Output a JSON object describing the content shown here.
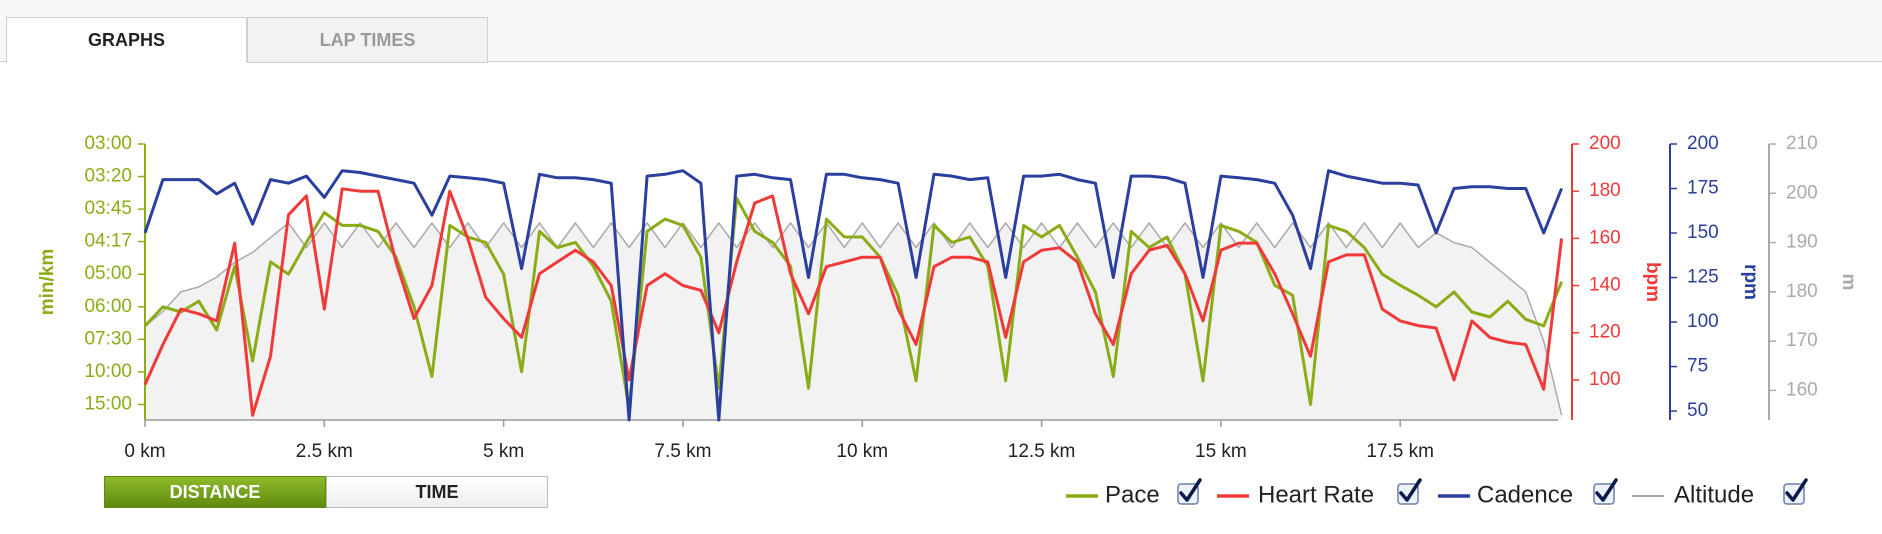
{
  "tabs": [
    "GRAPHS",
    "LAP TIMES"
  ],
  "active_tab": 0,
  "buttons": [
    "DISTANCE",
    "TIME"
  ],
  "active_button": 0,
  "chart_data": {
    "type": "line",
    "x": [
      0,
      0.25,
      0.5,
      0.75,
      1,
      1.25,
      1.5,
      1.75,
      2,
      2.25,
      2.5,
      2.75,
      3,
      3.25,
      3.5,
      3.75,
      4,
      4.25,
      4.5,
      4.75,
      5,
      5.25,
      5.5,
      5.75,
      6,
      6.25,
      6.5,
      6.75,
      7,
      7.25,
      7.5,
      7.75,
      8,
      8.25,
      8.5,
      8.75,
      9,
      9.25,
      9.5,
      9.75,
      10,
      10.25,
      10.5,
      10.75,
      11,
      11.25,
      11.5,
      11.75,
      12,
      12.25,
      12.5,
      12.75,
      13,
      13.25,
      13.5,
      13.75,
      14,
      14.25,
      14.5,
      14.75,
      15,
      15.25,
      15.5,
      15.75,
      16,
      16.25,
      16.5,
      16.75,
      17,
      17.25,
      17.5,
      17.75,
      18,
      18.25,
      18.5,
      18.75,
      19,
      19.25,
      19.5,
      19.75
    ],
    "xlim": [
      0,
      19.7
    ],
    "xticks": [
      {
        "value": 0,
        "label": "0 km"
      },
      {
        "value": 2.5,
        "label": "2.5 km"
      },
      {
        "value": 5,
        "label": "5 km"
      },
      {
        "value": 7.5,
        "label": "7.5 km"
      },
      {
        "value": 10,
        "label": "10 km"
      },
      {
        "value": 12.5,
        "label": "12.5 km"
      },
      {
        "value": 15,
        "label": "15 km"
      },
      {
        "value": 17.5,
        "label": "17.5 km"
      }
    ],
    "ylabel": "min/km",
    "yscale": "reciprocal",
    "ylim": [
      3,
      19.7
    ],
    "yticks": [
      {
        "value": 3,
        "label": "03:00"
      },
      {
        "value": 3.333,
        "label": "03:20"
      },
      {
        "value": 3.75,
        "label": "03:45"
      },
      {
        "value": 4.283,
        "label": "04:17"
      },
      {
        "value": 5,
        "label": "05:00"
      },
      {
        "value": 6,
        "label": "06:00"
      },
      {
        "value": 7.5,
        "label": "07:30"
      },
      {
        "value": 10,
        "label": "10:00"
      },
      {
        "value": 15,
        "label": "15:00"
      }
    ],
    "y2label": "bpm",
    "y2lim": [
      83,
      200
    ],
    "y2ticks": [
      100,
      120,
      140,
      160,
      180,
      200
    ],
    "y3label": "rpm",
    "y3lim": [
      45,
      200
    ],
    "y3ticks": [
      50,
      75,
      100,
      125,
      150,
      175,
      200
    ],
    "y4label": "m",
    "y4lim": [
      154,
      210
    ],
    "y4ticks": [
      160,
      170,
      180,
      190,
      200,
      210
    ],
    "series": [
      {
        "name": "Pace",
        "color": "#8aad17",
        "axis": "y",
        "checked": true,
        "values": [
          6.8,
          6.0,
          6.2,
          5.8,
          7.0,
          4.8,
          9.0,
          4.7,
          5.0,
          4.3,
          3.8,
          4.0,
          4.0,
          4.1,
          4.6,
          6.0,
          10.5,
          4.0,
          4.2,
          4.3,
          5.0,
          10.0,
          4.1,
          4.4,
          4.3,
          4.8,
          5.8,
          16,
          4.1,
          3.9,
          4.0,
          4.6,
          12,
          3.6,
          4.1,
          4.3,
          4.8,
          12,
          3.9,
          4.2,
          4.2,
          4.6,
          5.6,
          11,
          4.0,
          4.3,
          4.2,
          4.8,
          11,
          4.0,
          4.2,
          4.0,
          4.6,
          5.5,
          10.5,
          4.1,
          4.4,
          4.2,
          5.0,
          11,
          4.0,
          4.1,
          4.3,
          5.3,
          5.6,
          15,
          4.0,
          4.1,
          4.4,
          5.0,
          5.3,
          5.6,
          6.0,
          5.5,
          6.2,
          6.4,
          5.8,
          6.5,
          6.8,
          5.2
        ]
      },
      {
        "name": "Heart Rate",
        "color": "#f03a3a",
        "axis": "y2",
        "checked": true,
        "values": [
          98,
          115,
          130,
          128,
          125,
          158,
          85,
          110,
          170,
          178,
          130,
          181,
          180,
          180,
          150,
          126,
          140,
          180,
          160,
          135,
          126,
          118,
          145,
          150,
          155,
          150,
          140,
          100,
          140,
          145,
          140,
          138,
          120,
          150,
          175,
          178,
          145,
          128,
          148,
          150,
          152,
          152,
          130,
          115,
          148,
          152,
          152,
          150,
          118,
          150,
          155,
          156,
          150,
          128,
          115,
          145,
          155,
          157,
          145,
          125,
          155,
          158,
          158,
          145,
          128,
          110,
          150,
          153,
          153,
          130,
          125,
          123,
          122,
          100,
          125,
          118,
          116,
          115,
          96,
          160
        ]
      },
      {
        "name": "Cadence",
        "color": "#2b3f9e",
        "axis": "y3",
        "checked": true,
        "values": [
          150,
          180,
          180,
          180,
          172,
          178,
          155,
          180,
          178,
          182,
          170,
          185,
          184,
          182,
          180,
          178,
          160,
          182,
          181,
          180,
          178,
          130,
          183,
          181,
          181,
          180,
          178,
          45,
          182,
          183,
          185,
          178,
          45,
          182,
          183,
          181,
          180,
          125,
          183,
          183,
          181,
          180,
          178,
          125,
          183,
          182,
          180,
          181,
          125,
          182,
          182,
          183,
          180,
          178,
          125,
          182,
          182,
          181,
          178,
          125,
          182,
          181,
          180,
          178,
          160,
          130,
          185,
          182,
          180,
          178,
          178,
          177,
          150,
          175,
          176,
          176,
          175,
          175,
          150,
          175
        ]
      },
      {
        "name": "Altitude",
        "color": "#aaaaaa",
        "fill": "#f2f2f2",
        "axis": "y4",
        "checked": true,
        "values": [
          173,
          176,
          180,
          181,
          183,
          186,
          188,
          191,
          194,
          189,
          194,
          189,
          194,
          189,
          194,
          189,
          194,
          189,
          194,
          189,
          194,
          189,
          194,
          189,
          194,
          189,
          194,
          189,
          194,
          189,
          194,
          189,
          194,
          189,
          194,
          189,
          194,
          189,
          194,
          189,
          194,
          189,
          194,
          189,
          194,
          189,
          194,
          189,
          194,
          189,
          194,
          189,
          194,
          189,
          194,
          189,
          194,
          189,
          194,
          189,
          194,
          189,
          194,
          189,
          194,
          189,
          194,
          189,
          194,
          189,
          194,
          189,
          192,
          190,
          189,
          186,
          183,
          180,
          170,
          155
        ]
      }
    ]
  }
}
